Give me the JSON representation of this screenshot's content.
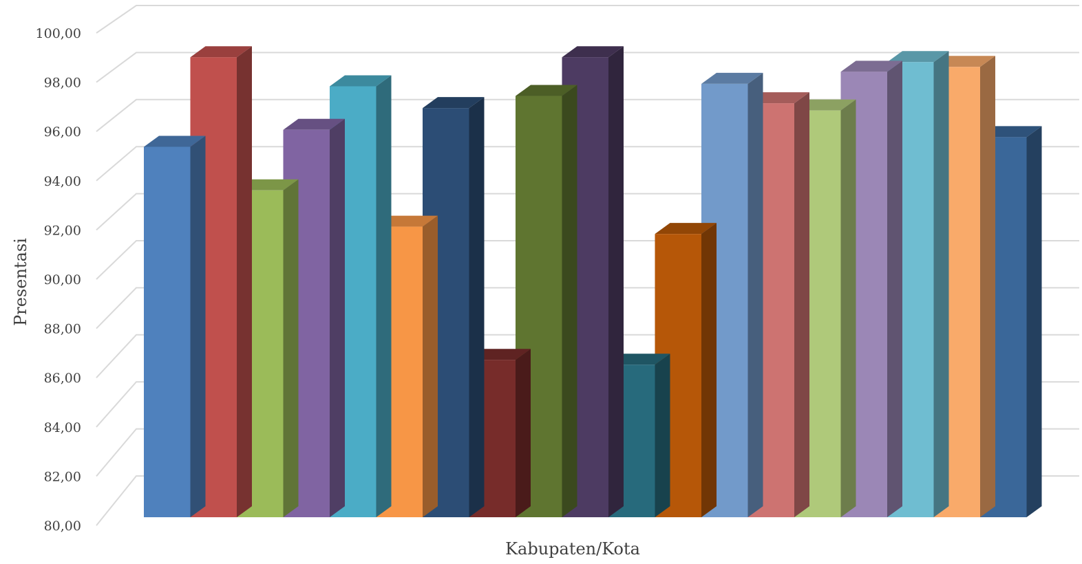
{
  "chart_data": {
    "type": "bar",
    "style": "3d-column",
    "xlabel": "Kabupaten/Kota",
    "ylabel": "Presentasi",
    "ylim": [
      80,
      100
    ],
    "y_ticks": [
      "80,00",
      "82,00",
      "84,00",
      "86,00",
      "88,00",
      "90,00",
      "92,00",
      "94,00",
      "96,00",
      "98,00",
      "100,00"
    ],
    "grid": true,
    "legend": "none",
    "values": [
      95.3,
      99.0,
      93.5,
      96.0,
      97.8,
      92.0,
      96.9,
      86.5,
      97.4,
      99.0,
      86.3,
      91.7,
      97.9,
      97.1,
      96.8,
      98.4,
      98.8,
      98.6,
      95.7
    ],
    "colors": [
      "#4f81bd",
      "#c0504d",
      "#9bbb59",
      "#8064a2",
      "#4bacc6",
      "#f79646",
      "#2c4d75",
      "#772c2a",
      "#5f7530",
      "#4d3b62",
      "#276a7c",
      "#b65708",
      "#729aca",
      "#cd7371",
      "#afc97a",
      "#9b87b6",
      "#6fbdd1",
      "#f9aa6a",
      "#3a6799"
    ]
  }
}
